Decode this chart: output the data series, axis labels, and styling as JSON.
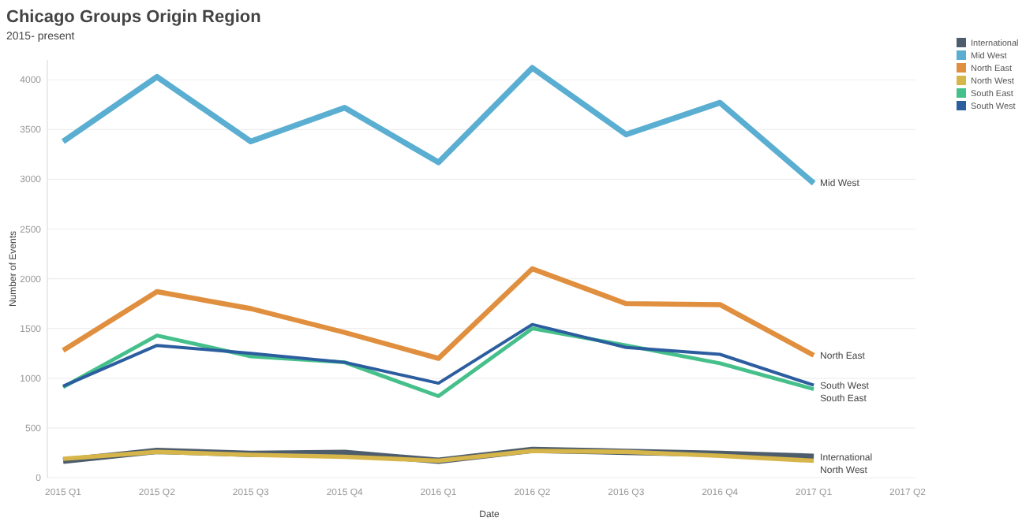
{
  "chart_data": {
    "type": "line",
    "title": "Chicago Groups Origin Region",
    "subtitle": "2015- present",
    "xlabel": "Date",
    "ylabel": "Number of Events",
    "categories": [
      "2015 Q1",
      "2015 Q2",
      "2015 Q3",
      "2015 Q4",
      "2016 Q1",
      "2016 Q2",
      "2016 Q3",
      "2016 Q4",
      "2017 Q1",
      "2017 Q2"
    ],
    "series": [
      {
        "name": "International",
        "color": "#4e5d6c",
        "values": [
          170,
          270,
          240,
          250,
          170,
          280,
          260,
          240,
          210,
          null
        ]
      },
      {
        "name": "Mid West",
        "color": "#5aaed1",
        "values": [
          3380,
          4030,
          3380,
          3720,
          3170,
          4120,
          3450,
          3770,
          2960,
          null
        ]
      },
      {
        "name": "North East",
        "color": "#e08f3f",
        "values": [
          1280,
          1870,
          1700,
          1460,
          1200,
          2100,
          1750,
          1740,
          1230,
          null
        ]
      },
      {
        "name": "North West",
        "color": "#d6b64a",
        "values": [
          190,
          260,
          230,
          210,
          170,
          270,
          260,
          220,
          170,
          null
        ]
      },
      {
        "name": "South East",
        "color": "#46c08b",
        "values": [
          910,
          1430,
          1220,
          1160,
          820,
          1500,
          1330,
          1150,
          890,
          null
        ]
      },
      {
        "name": "South West",
        "color": "#2b5d9f",
        "values": [
          920,
          1330,
          1250,
          1160,
          950,
          1540,
          1310,
          1240,
          930,
          null
        ]
      }
    ],
    "ylim": [
      0,
      4200
    ],
    "yticks": [
      0,
      500,
      1000,
      1500,
      2000,
      2500,
      3000,
      3500,
      4000
    ],
    "grid": "y",
    "legend": "top right",
    "marker": "none",
    "line_style": "solid"
  }
}
